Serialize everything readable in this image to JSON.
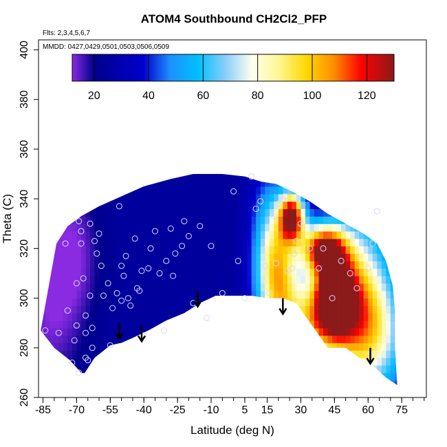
{
  "chart_data": {
    "type": "heatmap",
    "title": "ATOM4 Southbound CH2Cl2_PFP",
    "flights_label": "Flts: 2,3,4,5,6,7",
    "dates_label": "MMDD: 0427,0429,0501,0503,0506,0509",
    "xlabel": "Latitude (deg N)",
    "ylabel": "Theta (C)",
    "xlim": [
      -87,
      86
    ],
    "ylim": [
      260,
      404
    ],
    "x_ticks": [
      -85,
      -70,
      -55,
      -40,
      -25,
      -10,
      5,
      15,
      30,
      45,
      60,
      75
    ],
    "x_tick_labels": [
      "-85",
      "-70",
      "-55",
      "-40",
      "-25",
      "-10",
      "5",
      "15",
      "30",
      "45",
      "60",
      "75"
    ],
    "y_ticks": [
      260,
      280,
      300,
      320,
      340,
      360,
      380,
      400
    ],
    "y_tick_labels": [
      "260",
      "280",
      "300",
      "320",
      "340",
      "360",
      "380",
      "400"
    ],
    "colorbar": {
      "range": [
        12,
        130
      ],
      "ticks": [
        20,
        40,
        60,
        80,
        100,
        120
      ],
      "tick_labels": [
        "20",
        "40",
        "60",
        "80",
        "100",
        "120"
      ],
      "stops": [
        {
          "value": 12,
          "color": "#8a2be2"
        },
        {
          "value": 20,
          "color": "#00008b"
        },
        {
          "value": 38,
          "color": "#0000cd"
        },
        {
          "value": 48,
          "color": "#1e90ff"
        },
        {
          "value": 58,
          "color": "#00bfff"
        },
        {
          "value": 68,
          "color": "#87cefa"
        },
        {
          "value": 78,
          "color": "#fffff0"
        },
        {
          "value": 88,
          "color": "#fff68f"
        },
        {
          "value": 98,
          "color": "#ffd700"
        },
        {
          "value": 108,
          "color": "#ff8c00"
        },
        {
          "value": 118,
          "color": "#ff0000"
        },
        {
          "value": 130,
          "color": "#8b1a1a"
        }
      ]
    },
    "field": {
      "boundary_top": [
        [
          -79,
          322
        ],
        [
          -74,
          329
        ],
        [
          -68,
          333
        ],
        [
          -60,
          337
        ],
        [
          -50,
          341
        ],
        [
          -40,
          345
        ],
        [
          -28,
          348
        ],
        [
          -18,
          350
        ],
        [
          -5,
          350
        ],
        [
          5,
          349
        ],
        [
          12,
          347
        ],
        [
          19,
          346
        ],
        [
          26,
          343
        ],
        [
          34,
          339
        ],
        [
          42,
          334
        ],
        [
          50,
          330
        ],
        [
          58,
          326
        ],
        [
          64,
          322
        ],
        [
          68,
          315
        ],
        [
          71,
          305
        ],
        [
          72,
          295
        ],
        [
          72,
          280
        ],
        [
          73,
          265
        ]
      ],
      "boundary_bottom": [
        [
          -86,
          287
        ],
        [
          -80,
          280
        ],
        [
          -73,
          275
        ],
        [
          -67,
          269
        ],
        [
          -62,
          276
        ],
        [
          -55,
          281
        ],
        [
          -50,
          282
        ],
        [
          -45,
          284
        ],
        [
          -38,
          287
        ],
        [
          -30,
          291
        ],
        [
          -22,
          294
        ],
        [
          -15,
          298
        ],
        [
          -8,
          301
        ],
        [
          0,
          301
        ],
        [
          8,
          301
        ],
        [
          15,
          300
        ],
        [
          22,
          300
        ],
        [
          28,
          298
        ],
        [
          35,
          289
        ],
        [
          42,
          280
        ],
        [
          50,
          280
        ],
        [
          56,
          276
        ],
        [
          62,
          273
        ],
        [
          68,
          268
        ],
        [
          73,
          265
        ]
      ],
      "background_value": 25,
      "features": [
        {
          "lat": -82,
          "theta": 300,
          "value": 13,
          "sx": 10,
          "sy": 30
        },
        {
          "lat": -70,
          "theta": 318,
          "value": 16,
          "sx": 8,
          "sy": 20
        },
        {
          "lat": 16,
          "theta": 320,
          "value": 58,
          "sx": 6,
          "sy": 22
        },
        {
          "lat": 21,
          "theta": 310,
          "value": 75,
          "sx": 6,
          "sy": 16
        },
        {
          "lat": 26,
          "theta": 333,
          "value": 122,
          "sx": 4,
          "sy": 7
        },
        {
          "lat": 40,
          "theta": 320,
          "value": 118,
          "sx": 7,
          "sy": 7
        },
        {
          "lat": 45,
          "theta": 302,
          "value": 116,
          "sx": 6,
          "sy": 10
        },
        {
          "lat": 35,
          "theta": 290,
          "value": 85,
          "sx": 12,
          "sy": 12
        },
        {
          "lat": 55,
          "theta": 310,
          "value": 68,
          "sx": 10,
          "sy": 20
        },
        {
          "lat": 60,
          "theta": 285,
          "value": 82,
          "sx": 12,
          "sy": 18
        }
      ]
    },
    "samples": [
      [
        -84,
        287
      ],
      [
        -78,
        286
      ],
      [
        -75,
        322
      ],
      [
        -74,
        295
      ],
      [
        -72,
        274
      ],
      [
        -71,
        283
      ],
      [
        -70,
        306
      ],
      [
        -70,
        289
      ],
      [
        -69,
        331
      ],
      [
        -69,
        270
      ],
      [
        -68,
        327
      ],
      [
        -68,
        322
      ],
      [
        -67,
        308
      ],
      [
        -66,
        293
      ],
      [
        -66,
        286
      ],
      [
        -66,
        276
      ],
      [
        -65,
        275
      ],
      [
        -64,
        330
      ],
      [
        -64,
        301
      ],
      [
        -63,
        288
      ],
      [
        -63,
        280
      ],
      [
        -62,
        323
      ],
      [
        -61,
        318
      ],
      [
        -60,
        326
      ],
      [
        -59,
        313
      ],
      [
        -58,
        301
      ],
      [
        -56,
        306
      ],
      [
        -55,
        281
      ],
      [
        -54,
        296
      ],
      [
        -52,
        302
      ],
      [
        -51,
        337
      ],
      [
        -50,
        313
      ],
      [
        -50,
        299
      ],
      [
        -49,
        309
      ],
      [
        -48,
        317
      ],
      [
        -47,
        300
      ],
      [
        -46,
        297
      ],
      [
        -44,
        324
      ],
      [
        -43,
        304
      ],
      [
        -42,
        303
      ],
      [
        -41,
        311
      ],
      [
        -40,
        285
      ],
      [
        -38,
        312
      ],
      [
        -37,
        320
      ],
      [
        -35,
        327
      ],
      [
        -33,
        310
      ],
      [
        -31,
        287
      ],
      [
        -30,
        315
      ],
      [
        -28,
        328
      ],
      [
        -27,
        309
      ],
      [
        -26,
        318
      ],
      [
        -23,
        321
      ],
      [
        -22,
        331
      ],
      [
        -20,
        325
      ],
      [
        -18,
        298
      ],
      [
        -15,
        329
      ],
      [
        -12,
        292
      ],
      [
        -10,
        321
      ],
      [
        -5,
        302
      ],
      [
        0,
        343
      ],
      [
        2,
        315
      ],
      [
        5,
        300
      ],
      [
        8,
        349
      ],
      [
        10,
        336
      ],
      [
        12,
        339
      ],
      [
        14,
        313
      ],
      [
        16,
        302
      ],
      [
        18,
        333
      ],
      [
        19,
        314
      ],
      [
        20,
        338
      ],
      [
        22,
        340
      ],
      [
        23,
        341
      ],
      [
        24,
        311
      ],
      [
        26,
        312
      ],
      [
        27,
        318
      ],
      [
        28,
        323
      ],
      [
        30,
        330
      ],
      [
        34,
        320
      ],
      [
        38,
        312
      ],
      [
        40,
        320
      ],
      [
        44,
        300
      ],
      [
        48,
        315
      ],
      [
        52,
        310
      ],
      [
        55,
        304
      ],
      [
        60,
        312
      ],
      [
        62,
        322
      ],
      [
        64,
        335
      ]
    ],
    "arrows": [
      {
        "lat": -51,
        "theta": 290
      },
      {
        "lat": -41,
        "theta": 289
      },
      {
        "lat": -16,
        "theta": 303
      },
      {
        "lat": 22,
        "theta": 300
      },
      {
        "lat": 61,
        "theta": 280
      }
    ]
  }
}
